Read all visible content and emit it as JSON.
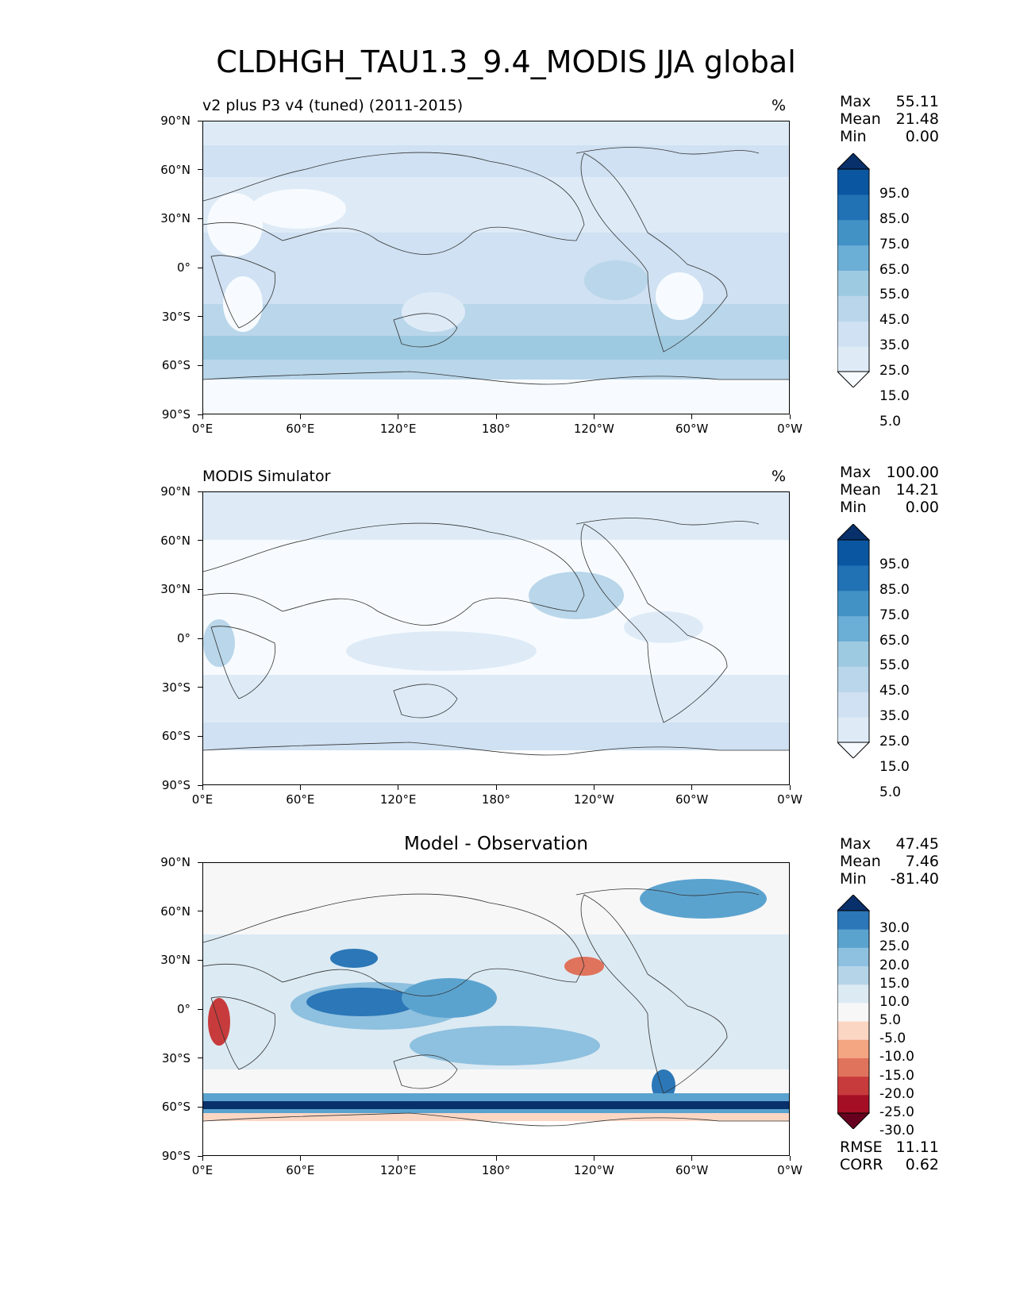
{
  "figure_title": "CLDHGH_TAU1.3_9.4_MODIS JJA global",
  "panels": [
    {
      "title": "v2 plus P3 v4 (tuned) (2011-2015)",
      "unit": "%",
      "stats": {
        "max_label": "Max",
        "max": "55.11",
        "mean_label": "Mean",
        "mean": "21.48",
        "min_label": "Min",
        "min": "0.00"
      },
      "colorbar_labels": [
        "95.0",
        "85.0",
        "75.0",
        "65.0",
        "55.0",
        "45.0",
        "35.0",
        "25.0",
        "15.0",
        "5.0"
      ],
      "colors": [
        "#f7fbff",
        "#deebf7",
        "#cfe1f2",
        "#b9d6ea",
        "#9ecae1",
        "#6baed6",
        "#4292c6",
        "#2171b5",
        "#0b56a0",
        "#08306b"
      ]
    },
    {
      "title": "MODIS Simulator",
      "unit": "%",
      "stats": {
        "max_label": "Max",
        "max": "100.00",
        "mean_label": "Mean",
        "mean": "14.21",
        "min_label": "Min",
        "min": "0.00"
      },
      "colorbar_labels": [
        "95.0",
        "85.0",
        "75.0",
        "65.0",
        "55.0",
        "45.0",
        "35.0",
        "25.0",
        "15.0",
        "5.0"
      ],
      "colors": [
        "#f7fbff",
        "#deebf7",
        "#cfe1f2",
        "#b9d6ea",
        "#9ecae1",
        "#6baed6",
        "#4292c6",
        "#2171b5",
        "#0b56a0",
        "#08306b"
      ]
    },
    {
      "title": "Model - Observation",
      "unit": "",
      "stats": {
        "max_label": "Max",
        "max": "47.45",
        "mean_label": "Mean",
        "mean": "7.46",
        "min_label": "Min",
        "min": "-81.40"
      },
      "colorbar_labels": [
        "30.0",
        "25.0",
        "20.0",
        "15.0",
        "10.0",
        "5.0",
        "-5.0",
        "-10.0",
        "-15.0",
        "-20.0",
        "-25.0",
        "-30.0"
      ],
      "colors": [
        "#67001f",
        "#a50f25",
        "#c73b3c",
        "#e0735c",
        "#f4a582",
        "#fbd6c3",
        "#f7f7f7",
        "#dceaf3",
        "#b5d4e8",
        "#8ec0df",
        "#5ba3cf",
        "#2b77b7",
        "#08306b"
      ],
      "rmse_label": "RMSE",
      "rmse": "11.11",
      "corr_label": "CORR",
      "corr": "0.62"
    }
  ],
  "y_ticks": [
    "90°N",
    "60°N",
    "30°N",
    "0°",
    "30°S",
    "60°S",
    "90°S"
  ],
  "x_ticks": [
    "0°E",
    "60°E",
    "120°E",
    "180°",
    "120°W",
    "60°W",
    "0°W"
  ]
}
